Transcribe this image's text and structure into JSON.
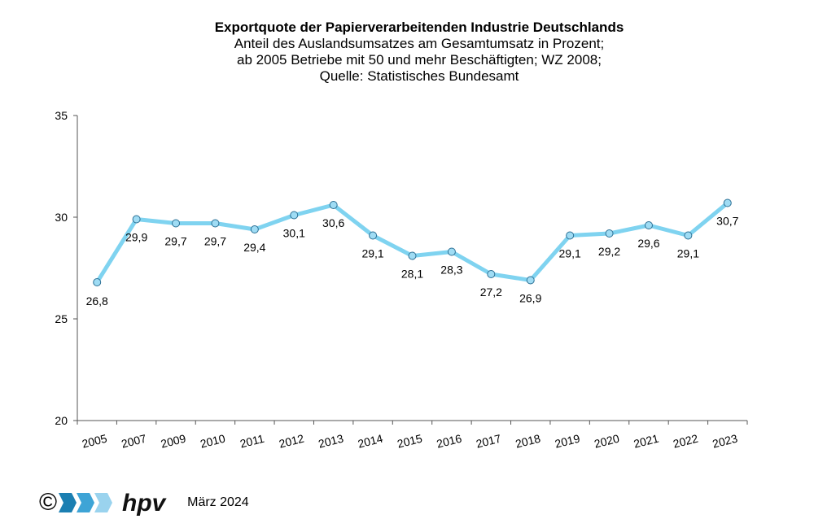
{
  "header": {
    "title": "Exportquote der Papierverarbeitenden Industrie Deutschlands",
    "subtitle_1": "Anteil des Auslandsumsatzes am Gesamtumsatz in Prozent;",
    "subtitle_2": "ab 2005 Betriebe mit 50 und mehr Beschäftigten; WZ 2008;",
    "subtitle_3": "Quelle: Statistisches Bundesamt"
  },
  "chart_data": {
    "type": "line",
    "categories": [
      "2005",
      "2007",
      "2009",
      "2010",
      "2011",
      "2012",
      "2013",
      "2014",
      "2015",
      "2016",
      "2017",
      "2018",
      "2019",
      "2020",
      "2021",
      "2022",
      "2023"
    ],
    "series": [
      {
        "values": [
          26.8,
          29.9,
          29.7,
          29.7,
          29.4,
          30.1,
          30.6,
          29.1,
          28.1,
          28.3,
          27.2,
          26.9,
          29.1,
          29.2,
          29.6,
          29.1,
          30.7
        ],
        "labels": [
          "26,8",
          "29,9",
          "29,7",
          "29,7",
          "29,4",
          "30,1",
          "30,6",
          "29,1",
          "28,1",
          "28,3",
          "27,2",
          "26,9",
          "29,1",
          "29,2",
          "29,6",
          "29,1",
          "30,7"
        ]
      }
    ],
    "ylim": [
      20,
      35
    ],
    "yticks": [
      "20",
      "25",
      "30",
      "35"
    ],
    "grid": false,
    "colors": {
      "line": "#7fd3f0",
      "marker_fill": "#9fdcf4",
      "marker_stroke": "#2b6f94"
    }
  },
  "footer": {
    "copyright_symbol": "©",
    "logo_text": "hpv",
    "date": "März 2024",
    "logo_colors": [
      "#1b7fb2",
      "#3ea4d6",
      "#9ad3ee"
    ]
  }
}
